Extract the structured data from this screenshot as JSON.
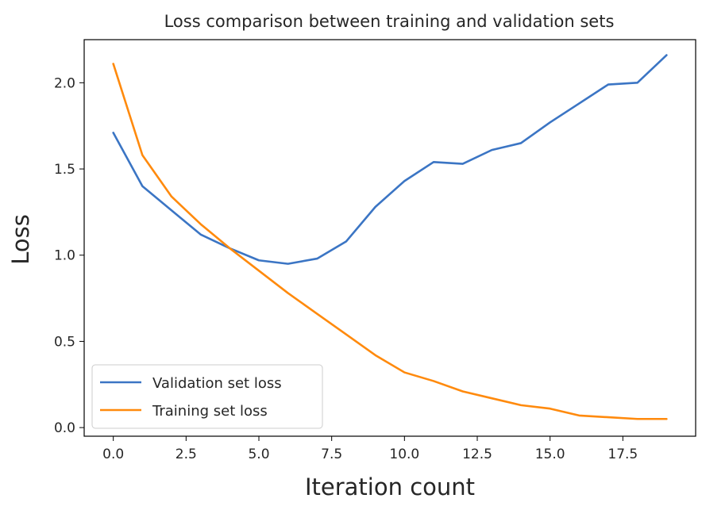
{
  "chart_data": {
    "type": "line",
    "title": "Loss comparison between training and validation sets",
    "xlabel": "Iteration count",
    "ylabel": "Loss",
    "xlim": [
      -1,
      20
    ],
    "ylim": [
      -0.05,
      2.25
    ],
    "xticks": [
      "0.0",
      "2.5",
      "5.0",
      "7.5",
      "10.0",
      "12.5",
      "15.0",
      "17.5"
    ],
    "yticks": [
      "0.0",
      "0.5",
      "1.0",
      "1.5",
      "2.0"
    ],
    "grid": false,
    "legend_position": "lower-left",
    "x": [
      0,
      1,
      2,
      3,
      4,
      5,
      6,
      7,
      8,
      9,
      10,
      11,
      12,
      13,
      14,
      15,
      16,
      17,
      18,
      19
    ],
    "series": [
      {
        "name": "Validation set loss",
        "color": "#3b75c4",
        "values": [
          1.71,
          1.4,
          1.26,
          1.12,
          1.04,
          0.97,
          0.95,
          0.98,
          1.08,
          1.28,
          1.43,
          1.54,
          1.53,
          1.61,
          1.65,
          1.77,
          1.88,
          1.99,
          2.0,
          2.16
        ]
      },
      {
        "name": "Training set loss",
        "color": "#ff8a0d",
        "values": [
          2.11,
          1.58,
          1.34,
          1.18,
          1.04,
          0.91,
          0.78,
          0.66,
          0.54,
          0.42,
          0.32,
          0.27,
          0.21,
          0.17,
          0.13,
          0.11,
          0.07,
          0.06,
          0.05,
          0.05
        ]
      }
    ]
  }
}
